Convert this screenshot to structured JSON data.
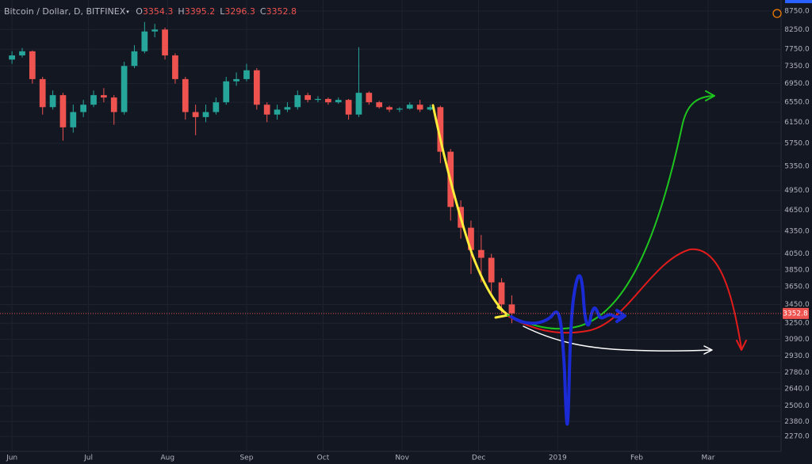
{
  "header": {
    "symbol": "Bitcoin / Dollar, D, BITFINEX",
    "ohlc": [
      {
        "label": "O",
        "value": 3354.3
      },
      {
        "label": "H",
        "value": 3395.2
      },
      {
        "label": "L",
        "value": 3296.3
      },
      {
        "label": "C",
        "value": 3352.8
      }
    ]
  },
  "chart_data": {
    "type": "candlestick",
    "log_scale": true,
    "grid": true,
    "up_color": "#26a69a",
    "down_color": "#ef5350",
    "x": [
      0,
      4,
      8,
      12,
      16,
      20,
      24,
      28,
      32,
      36,
      40,
      44,
      48,
      52,
      56,
      60,
      64,
      68,
      72,
      76,
      80,
      84,
      88,
      92,
      96,
      100,
      104,
      108,
      112,
      116,
      120,
      124,
      128,
      132,
      136,
      140,
      144,
      148,
      152,
      156,
      160,
      164,
      168,
      172,
      176,
      180,
      184,
      188,
      192,
      196
    ],
    "open": [
      7500,
      7600,
      7700,
      7050,
      6450,
      6700,
      6050,
      6350,
      6500,
      6700,
      6650,
      6350,
      7350,
      7700,
      8200,
      8250,
      7600,
      7050,
      6350,
      6250,
      6350,
      6550,
      7000,
      7050,
      7250,
      6500,
      6300,
      6400,
      6450,
      6700,
      6600,
      6620,
      6550,
      6600,
      6300,
      6750,
      6550,
      6450,
      6400,
      6420,
      6500,
      6400,
      6450,
      5600,
      4700,
      4400,
      4100,
      4000,
      3700,
      3450
    ],
    "high": [
      7700,
      7780,
      7720,
      7100,
      6800,
      6750,
      6500,
      6600,
      6800,
      6850,
      6700,
      7450,
      7850,
      8450,
      8400,
      8300,
      7650,
      7100,
      6500,
      6500,
      6650,
      7100,
      7200,
      7400,
      7300,
      6550,
      6500,
      6550,
      6800,
      6750,
      6680,
      6650,
      6650,
      6620,
      7800,
      6780,
      6580,
      6480,
      6450,
      6550,
      6600,
      6500,
      6480,
      5650,
      4800,
      4500,
      4300,
      4050,
      3750,
      3550
    ],
    "low": [
      7400,
      7550,
      6950,
      6300,
      6400,
      5800,
      5950,
      6250,
      6450,
      6550,
      6100,
      6300,
      7300,
      7650,
      8050,
      7500,
      6950,
      6200,
      5900,
      6150,
      6300,
      6500,
      6900,
      7000,
      6400,
      6150,
      6200,
      6350,
      6400,
      6550,
      6550,
      6500,
      6520,
      6200,
      6250,
      6500,
      6420,
      6350,
      6350,
      6400,
      6350,
      6380,
      5400,
      4500,
      4250,
      3800,
      3700,
      3550,
      3350,
      3250
    ],
    "close": [
      7600,
      7700,
      7050,
      6450,
      6700,
      6050,
      6350,
      6500,
      6700,
      6650,
      6350,
      7350,
      7700,
      8200,
      8250,
      7600,
      7050,
      6350,
      6250,
      6350,
      6550,
      7000,
      7050,
      7250,
      6500,
      6300,
      6400,
      6450,
      6700,
      6600,
      6620,
      6550,
      6600,
      6300,
      6750,
      6550,
      6450,
      6400,
      6420,
      6500,
      6400,
      6450,
      5600,
      4700,
      4400,
      4100,
      4000,
      3700,
      3450,
      3353
    ],
    "last_price": {
      "value": 3352.8
    },
    "xlim": [
      -4.7,
      301.6
    ],
    "xticks": [
      {
        "value": 0,
        "label": "Jun"
      },
      {
        "value": 30,
        "label": "Jul"
      },
      {
        "value": 61,
        "label": "Aug"
      },
      {
        "value": 92,
        "label": "Sep"
      },
      {
        "value": 122,
        "label": "Oct"
      },
      {
        "value": 153,
        "label": "Nov"
      },
      {
        "value": 183,
        "label": "Dec"
      },
      {
        "value": 214,
        "label": "2019"
      },
      {
        "value": 245,
        "label": "Feb"
      },
      {
        "value": 273,
        "label": "Mar"
      }
    ],
    "ylim": [
      2165,
      9060
    ],
    "yticks": [
      {
        "value": 8750,
        "label": "8750.0"
      },
      {
        "value": 8250,
        "label": "8250.0"
      },
      {
        "value": 7750,
        "label": "7750.0"
      },
      {
        "value": 7350,
        "label": "7350.0"
      },
      {
        "value": 6950,
        "label": "6950.0"
      },
      {
        "value": 6550,
        "label": "6550.0"
      },
      {
        "value": 6150,
        "label": "6150.0"
      },
      {
        "value": 5750,
        "label": "5750.0"
      },
      {
        "value": 5350,
        "label": "5350.0"
      },
      {
        "value": 4950,
        "label": "4950.0"
      },
      {
        "value": 4650,
        "label": "4650.0"
      },
      {
        "value": 4350,
        "label": "4350.0"
      },
      {
        "value": 4050,
        "label": "4050.0"
      },
      {
        "value": 3850,
        "label": "3850.0"
      },
      {
        "value": 3650,
        "label": "3650.0"
      },
      {
        "value": 3450,
        "label": "3450.0"
      },
      {
        "value": 3250,
        "label": "3250.0"
      },
      {
        "value": 3090,
        "label": "3090.0"
      },
      {
        "value": 2930,
        "label": "2930.0"
      },
      {
        "value": 2780,
        "label": "2780.0"
      },
      {
        "value": 2640,
        "label": "2640.0"
      },
      {
        "value": 2500,
        "label": "2500.0"
      },
      {
        "value": 2380,
        "label": "2380.0"
      },
      {
        "value": 2270,
        "label": "2270.0"
      }
    ]
  }
}
